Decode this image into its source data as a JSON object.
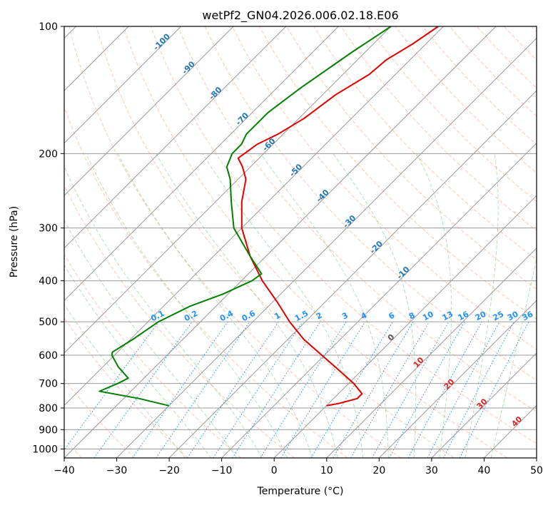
{
  "chart_data": {
    "type": "line",
    "subtype": "skew-t log-p",
    "title": "wetPf2_GN04.2026.006.02.18.E06",
    "xlabel": "Temperature (°C)",
    "ylabel": "Pressure (hPa)",
    "xlim": [
      -40,
      50
    ],
    "ylim": [
      1050,
      100
    ],
    "y_scale": "log",
    "grid": true,
    "x_ticks": [
      -40,
      -30,
      -20,
      -10,
      0,
      10,
      20,
      30,
      40,
      50
    ],
    "y_ticks": [
      100,
      200,
      300,
      400,
      500,
      600,
      700,
      800,
      900,
      1000
    ],
    "series": [
      {
        "color": "#e00000",
        "points": [
          {
            "p": 100,
            "t": -51
          },
          {
            "p": 110,
            "t": -52.5
          },
          {
            "p": 120,
            "t": -54.5
          },
          {
            "p": 130,
            "t": -55
          },
          {
            "p": 145,
            "t": -57.5
          },
          {
            "p": 165,
            "t": -59
          },
          {
            "p": 180,
            "t": -61
          },
          {
            "p": 190,
            "t": -63
          },
          {
            "p": 205,
            "t": -64
          },
          {
            "p": 215,
            "t": -61.5
          },
          {
            "p": 230,
            "t": -58.5
          },
          {
            "p": 260,
            "t": -55
          },
          {
            "p": 300,
            "t": -50
          },
          {
            "p": 350,
            "t": -43
          },
          {
            "p": 400,
            "t": -36
          },
          {
            "p": 450,
            "t": -29
          },
          {
            "p": 500,
            "t": -23
          },
          {
            "p": 550,
            "t": -17
          },
          {
            "p": 600,
            "t": -10.5
          },
          {
            "p": 650,
            "t": -4.5
          },
          {
            "p": 700,
            "t": 1
          },
          {
            "p": 740,
            "t": 4.5
          },
          {
            "p": 760,
            "t": 4.5
          },
          {
            "p": 780,
            "t": 2
          },
          {
            "p": 790,
            "t": 0
          }
        ]
      },
      {
        "color": "#008000",
        "points": [
          {
            "p": 100,
            "t": -60
          },
          {
            "p": 115,
            "t": -62.5
          },
          {
            "p": 140,
            "t": -65.5
          },
          {
            "p": 160,
            "t": -67
          },
          {
            "p": 180,
            "t": -67
          },
          {
            "p": 190,
            "t": -66
          },
          {
            "p": 200,
            "t": -66
          },
          {
            "p": 215,
            "t": -64.5
          },
          {
            "p": 230,
            "t": -61.5
          },
          {
            "p": 260,
            "t": -57
          },
          {
            "p": 300,
            "t": -51.5
          },
          {
            "p": 350,
            "t": -43
          },
          {
            "p": 385,
            "t": -37.5
          },
          {
            "p": 400,
            "t": -38
          },
          {
            "p": 430,
            "t": -41
          },
          {
            "p": 460,
            "t": -45
          },
          {
            "p": 500,
            "t": -48
          },
          {
            "p": 550,
            "t": -49.5
          },
          {
            "p": 590,
            "t": -51
          },
          {
            "p": 600,
            "t": -50.5
          },
          {
            "p": 640,
            "t": -47
          },
          {
            "p": 680,
            "t": -43
          },
          {
            "p": 700,
            "t": -44
          },
          {
            "p": 730,
            "t": -46
          },
          {
            "p": 760,
            "t": -37
          },
          {
            "p": 790,
            "t": -30
          }
        ]
      }
    ],
    "isotherm_labels": [
      "-100",
      "-90",
      "-80",
      "-70",
      "-60",
      "-50",
      "-40",
      "-30",
      "-20",
      "-10"
    ],
    "mixing_ratio_labels": [
      "0.1",
      "0.2",
      "0.4",
      "0.6",
      "1",
      "1.5",
      "2",
      "3",
      "4",
      "6",
      "8",
      "10",
      "13",
      "16",
      "20",
      "25",
      "30",
      "36"
    ],
    "moist_adiabat_labels": [
      "0",
      "10",
      "20",
      "30",
      "40"
    ],
    "colors": {
      "isotherm_label": "#1f77b4",
      "mixing_ratio": "#1e90ff",
      "moist_label": "#d62728",
      "dry_adiabat": "#ff7f50",
      "moist_adiabat": "#2ca02c"
    }
  }
}
